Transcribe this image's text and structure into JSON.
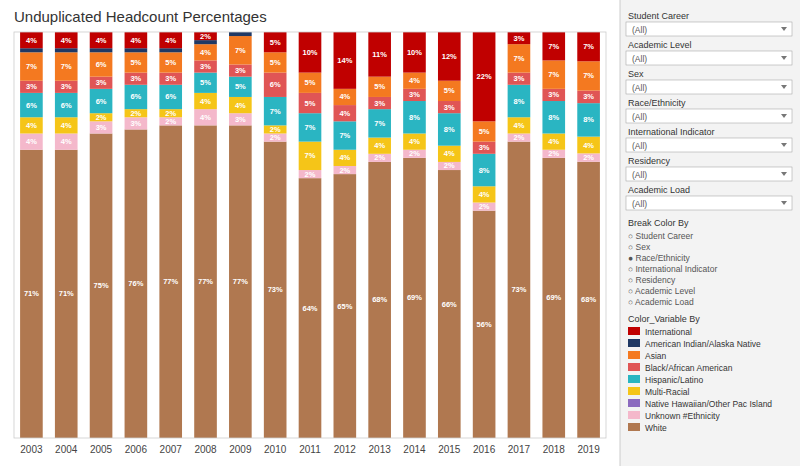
{
  "chart_data": {
    "type": "bar",
    "title": "Unduplicated Headcount Percentages",
    "stacked": true,
    "data_labels": true,
    "grid": false,
    "legend": "right",
    "tick_labels": "x",
    "ylim": [
      0,
      100
    ],
    "categories": [
      "2003",
      "2004",
      "2005",
      "2006",
      "2007",
      "2008",
      "2009",
      "2010",
      "2011",
      "2012",
      "2013",
      "2014",
      "2015",
      "2016",
      "2017",
      "2018",
      "2019"
    ],
    "series": [
      {
        "name": "International",
        "color": "#c00000",
        "values": [
          4,
          4,
          4,
          4,
          4,
          2,
          0,
          5,
          10,
          14,
          11,
          10,
          12,
          22,
          3,
          7,
          7.21649484536
        ],
        "value_labels": [
          "4%",
          "4%",
          "4%",
          "4%",
          "4%",
          "2%",
          null,
          "5%",
          "10%",
          "14%",
          "11%",
          "10%",
          "12%",
          "22%",
          "3%",
          "7%",
          "7%"
        ]
      },
      {
        "name": "American Indian/Alaska Native",
        "color": "#1f3864",
        "values": [
          1,
          1,
          1,
          1,
          1,
          1,
          1,
          0,
          0,
          0,
          0,
          0,
          0,
          0,
          0,
          0,
          0
        ],
        "value_labels": [
          null,
          null,
          null,
          null,
          null,
          null,
          null,
          null,
          null,
          null,
          null,
          null,
          null,
          null,
          null,
          null,
          null
        ]
      },
      {
        "name": "Asian",
        "color": "#f47920",
        "values": [
          7,
          7,
          6,
          5,
          5,
          4,
          7,
          5,
          5,
          4,
          5,
          4,
          5,
          5,
          7,
          7,
          7.21649484536
        ],
        "value_labels": [
          "7%",
          "7%",
          "6%",
          "5%",
          "5%",
          "4%",
          "7%",
          "5%",
          "5%",
          "4%",
          "5%",
          "4%",
          "5%",
          "5%",
          "7%",
          "7%",
          "7%"
        ]
      },
      {
        "name": "Black/African American",
        "color": "#e05555",
        "values": [
          3,
          3,
          3,
          3,
          3,
          3,
          3,
          6,
          5,
          4,
          3,
          3,
          3,
          3,
          3,
          3,
          3.0927835051
        ],
        "value_labels": [
          "3%",
          "3%",
          "3%",
          "3%",
          "3%",
          "3%",
          "3%",
          "6%",
          "5%",
          "4%",
          "3%",
          "3%",
          "3%",
          "3%",
          "3%",
          "3%",
          "3%"
        ]
      },
      {
        "name": "Hispanic/Latino",
        "color": "#2ab5c2",
        "values": [
          6,
          6,
          6,
          6,
          6,
          5,
          5,
          7,
          7,
          7,
          7,
          8,
          8,
          8,
          8,
          8,
          8.2474226804
        ],
        "value_labels": [
          "6%",
          "6%",
          "6%",
          "6%",
          "6%",
          "5%",
          "5%",
          "7%",
          "7%",
          "7%",
          "7%",
          "8%",
          "8%",
          "8%",
          "8%",
          "8%",
          "8%"
        ]
      },
      {
        "name": "Multi-Racial",
        "color": "#f5c518",
        "values": [
          4,
          4,
          2,
          2,
          2,
          4,
          4,
          2,
          7,
          4,
          4,
          4,
          4,
          4,
          4,
          4,
          4.1237113402
        ],
        "value_labels": [
          "4%",
          "4%",
          "2%",
          "2%",
          "2%",
          "4%",
          "4%",
          "2%",
          "7%",
          "4%",
          "4%",
          "4%",
          "4%",
          "4%",
          "4%",
          "4%",
          "4%"
        ]
      },
      {
        "name": "Native Hawaiian/Other Pac Island",
        "color": "#8b6abf",
        "values": [
          0,
          0,
          0,
          0,
          0,
          0,
          0,
          0,
          0,
          0,
          0,
          0,
          0,
          0,
          0,
          0,
          0
        ],
        "value_labels": [
          null,
          null,
          null,
          null,
          null,
          null,
          null,
          null,
          null,
          null,
          null,
          null,
          null,
          null,
          null,
          null,
          null
        ]
      },
      {
        "name": "Unknown #Ethnicity",
        "color": "#f4b8cb",
        "values": [
          4,
          4,
          3,
          3,
          2,
          4,
          3,
          2,
          2,
          2,
          2,
          2,
          2,
          2,
          2,
          2,
          2.0618556701
        ],
        "value_labels": [
          "4%",
          "4%",
          "3%",
          "3%",
          "2%",
          "4%",
          "3%",
          "2%",
          "2%",
          "2%",
          "2%",
          "2%",
          "2%",
          "2%",
          "2%",
          "2%",
          "2%"
        ]
      },
      {
        "name": "White",
        "color": "#b07850",
        "values": [
          71,
          71,
          75,
          76,
          77,
          77,
          77,
          73,
          64,
          65,
          68,
          69,
          66,
          56,
          73,
          69,
          68.0412371134
        ],
        "value_labels": [
          "71%",
          "71%",
          "75%",
          "76%",
          "77%",
          "77%",
          "77%",
          "73%",
          "64%",
          "65%",
          "68%",
          "69%",
          "66%",
          "56%",
          "73%",
          "69%",
          "68%"
        ]
      }
    ],
    "annotations": [
      "Student Career",
      "(All)",
      "Academic Level",
      "(All)",
      "Sex",
      "(All)",
      "Race/Ethnicity",
      "(All)",
      "International Indicator",
      "(All)",
      "Residency",
      "(All)",
      "Academic Load",
      "(All)",
      "Break Color By",
      "○ Student Career",
      "○ Sex",
      "● Race/Ethnicity",
      "○ International Indicator",
      "○ Residency",
      "○ Academic Level",
      "○ Academic Load",
      "Color_Variable By"
    ]
  }
}
